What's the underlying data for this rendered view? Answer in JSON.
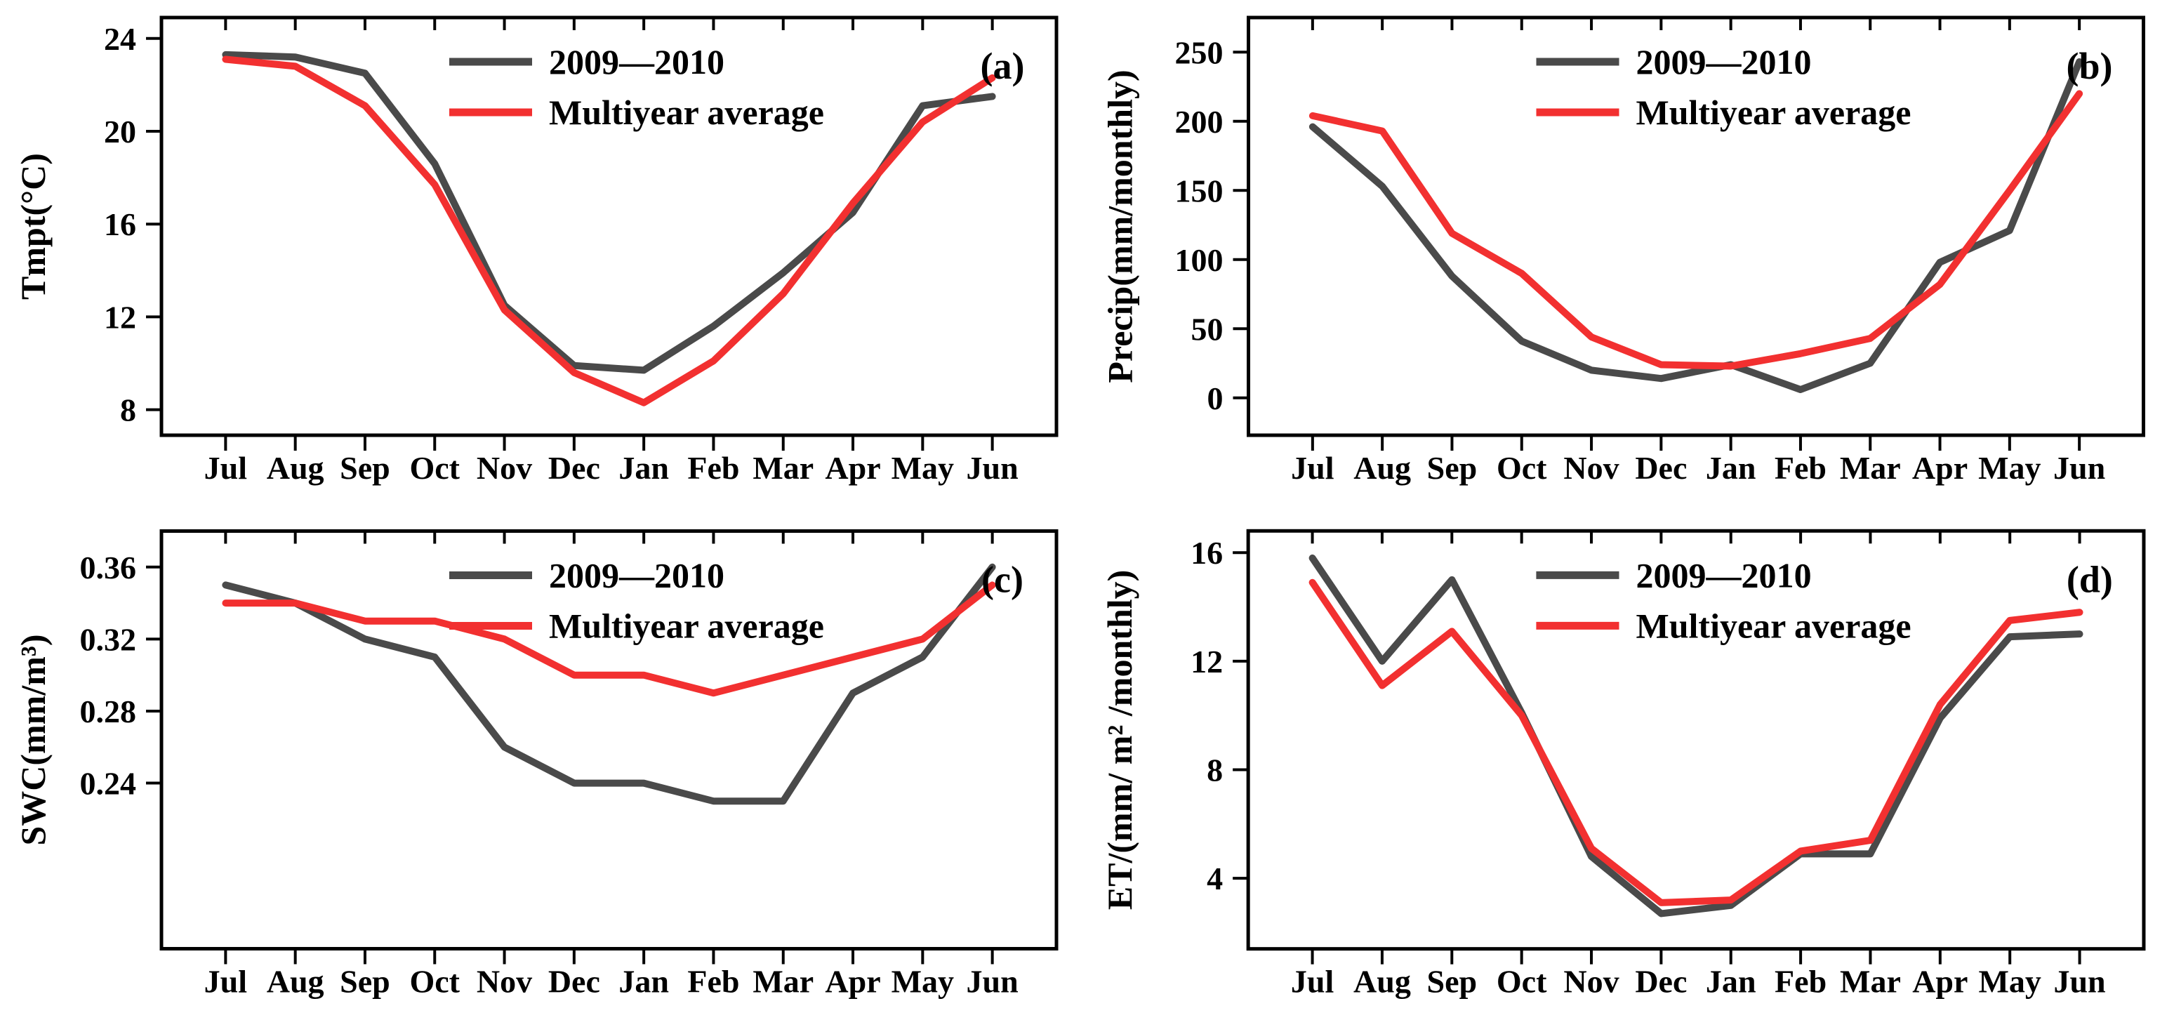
{
  "figure": {
    "background": "#ffffff",
    "axis_color": "#000000",
    "months": [
      "Jul",
      "Aug",
      "Sep",
      "Oct",
      "Nov",
      "Dec",
      "Jan",
      "Feb",
      "Mar",
      "Apr",
      "May",
      "Jun"
    ],
    "legend": {
      "series1_label": "2009—2010",
      "series2_label": "Multiyear average"
    },
    "colors": {
      "series1": "#4a4a4a",
      "series2": "#f23030"
    }
  },
  "chart_data": [
    {
      "id": "a",
      "type": "line",
      "panel_label": "(a)",
      "title": "",
      "xlabel": "",
      "ylabel": "Tmpt(°C)",
      "x_categories": [
        "Jul",
        "Aug",
        "Sep",
        "Oct",
        "Nov",
        "Dec",
        "Jan",
        "Feb",
        "Mar",
        "Apr",
        "May",
        "Jun"
      ],
      "ylim": [
        6.9,
        24.9
      ],
      "yticks": [
        8,
        12,
        16,
        20,
        24
      ],
      "ytick_labels": [
        "8",
        "12",
        "16",
        "20",
        "24"
      ],
      "grid": false,
      "legend_position": "top-center",
      "series": [
        {
          "name": "2009—2010",
          "color": "#4a4a4a",
          "values": [
            23.3,
            23.2,
            22.5,
            18.6,
            12.5,
            9.9,
            9.7,
            11.6,
            13.9,
            16.5,
            21.1,
            21.5
          ]
        },
        {
          "name": "Multiyear average",
          "color": "#f23030",
          "values": [
            23.1,
            22.8,
            21.1,
            17.7,
            12.3,
            9.6,
            8.3,
            10.1,
            13.0,
            16.9,
            20.4,
            22.3
          ]
        }
      ]
    },
    {
      "id": "b",
      "type": "line",
      "panel_label": "(b)",
      "title": "",
      "xlabel": "",
      "ylabel": "Precip(mm/monthly)",
      "x_categories": [
        "Jul",
        "Aug",
        "Sep",
        "Oct",
        "Nov",
        "Dec",
        "Jan",
        "Feb",
        "Mar",
        "Apr",
        "May",
        "Jun"
      ],
      "ylim": [
        -27,
        275
      ],
      "yticks": [
        0,
        50,
        100,
        150,
        200,
        250
      ],
      "ytick_labels": [
        "0",
        "50",
        "100",
        "150",
        "200",
        "250"
      ],
      "grid": false,
      "legend_position": "top-center",
      "series": [
        {
          "name": "2009—2010",
          "color": "#4a4a4a",
          "values": [
            196,
            153,
            88,
            41,
            20,
            14,
            24,
            6,
            25,
            98,
            121,
            243
          ]
        },
        {
          "name": "Multiyear average",
          "color": "#f23030",
          "values": [
            204,
            193,
            119,
            90,
            44,
            24,
            23,
            32,
            43,
            82,
            150,
            220
          ]
        }
      ]
    },
    {
      "id": "c",
      "type": "line",
      "panel_label": "(c)",
      "title": "",
      "xlabel": "",
      "ylabel": "SWC(mm/m³)",
      "x_categories": [
        "Jul",
        "Aug",
        "Sep",
        "Oct",
        "Nov",
        "Dec",
        "Jan",
        "Feb",
        "Mar",
        "Apr",
        "May",
        "Jun"
      ],
      "ylim": [
        0.148,
        0.38
      ],
      "yticks": [
        0.24,
        0.28,
        0.32,
        0.36
      ],
      "ytick_labels": [
        "0.24",
        "0.28",
        "0.32",
        "0.36"
      ],
      "grid": false,
      "legend_position": "top-center",
      "series": [
        {
          "name": "2009—2010",
          "color": "#4a4a4a",
          "values": [
            0.35,
            0.34,
            0.32,
            0.31,
            0.26,
            0.24,
            0.24,
            0.23,
            0.23,
            0.29,
            0.31,
            0.36
          ]
        },
        {
          "name": "Multiyear average",
          "color": "#f23030",
          "values": [
            0.34,
            0.34,
            0.33,
            0.33,
            0.32,
            0.3,
            0.3,
            0.29,
            0.3,
            0.31,
            0.32,
            0.35
          ]
        }
      ]
    },
    {
      "id": "d",
      "type": "line",
      "panel_label": "(d)",
      "title": "",
      "xlabel": "",
      "ylabel": "ET/(mm/ m² /monthly)",
      "x_categories": [
        "Jul",
        "Aug",
        "Sep",
        "Oct",
        "Nov",
        "Dec",
        "Jan",
        "Feb",
        "Mar",
        "Apr",
        "May",
        "Jun"
      ],
      "ylim": [
        1.4,
        16.8
      ],
      "yticks": [
        4,
        8,
        12,
        16
      ],
      "ytick_labels": [
        "4",
        "8",
        "12",
        "16"
      ],
      "grid": false,
      "legend_position": "top-center",
      "series": [
        {
          "name": "2009—2010",
          "color": "#4a4a4a",
          "values": [
            15.8,
            12.0,
            15.0,
            10.1,
            4.8,
            2.7,
            3.0,
            4.9,
            4.9,
            9.9,
            12.9,
            13.0
          ]
        },
        {
          "name": "Multiyear average",
          "color": "#f23030",
          "values": [
            14.9,
            11.1,
            13.1,
            10.0,
            5.1,
            3.1,
            3.2,
            5.0,
            5.4,
            10.4,
            13.5,
            13.8
          ]
        }
      ]
    }
  ]
}
